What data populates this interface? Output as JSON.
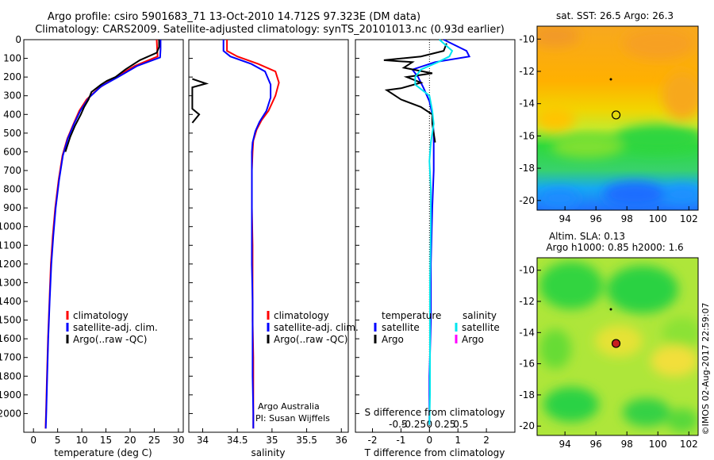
{
  "header": {
    "title_line1": "Argo profile: csiro 5901683_71 13-Oct-2010 14.712S 97.323E (DM data)",
    "title_line2": "Climatology: CARS2009. Satellite-adjusted climatology: synTS_20101013.nc (0.93d earlier)"
  },
  "footer": {
    "credit": "©IMOS 02-Aug-2017 22:59:07"
  },
  "colors": {
    "climatology": "#ff0000",
    "satellite": "#0000ff",
    "argo": "#000000",
    "sal_satellite": "#00e5ee",
    "sal_argo": "#ff00ff"
  },
  "chart_data": [
    {
      "id": "temperature",
      "type": "line",
      "xlabel": "temperature (deg C)",
      "ylabel": "",
      "xlim": [
        -2,
        31
      ],
      "ylim": [
        2100,
        0
      ],
      "xticks": [
        0,
        5,
        10,
        15,
        20,
        25,
        30
      ],
      "yticks": [
        0,
        100,
        200,
        300,
        400,
        500,
        600,
        700,
        800,
        900,
        1000,
        1100,
        1200,
        1300,
        1400,
        1500,
        1600,
        1700,
        1800,
        1900,
        2000
      ],
      "legend": [
        "climatology",
        "satellite-adj. clim.",
        "Argo(..raw -QC)"
      ],
      "series": [
        {
          "name": "climatology",
          "color": "#ff0000",
          "points": [
            [
              25.5,
              0
            ],
            [
              25.6,
              50
            ],
            [
              25.7,
              90
            ],
            [
              21,
              140
            ],
            [
              17,
              200
            ],
            [
              13.5,
              260
            ],
            [
              11,
              320
            ],
            [
              9.5,
              380
            ],
            [
              8.3,
              450
            ],
            [
              7,
              530
            ],
            [
              6,
              620
            ],
            [
              5.2,
              750
            ],
            [
              4.5,
              900
            ],
            [
              4,
              1050
            ],
            [
              3.6,
              1200
            ],
            [
              3.3,
              1400
            ],
            [
              3,
              1600
            ],
            [
              2.8,
              1800
            ],
            [
              2.6,
              2000
            ],
            [
              2.5,
              2080
            ]
          ]
        },
        {
          "name": "satellite-adj. clim.",
          "color": "#0000ff",
          "points": [
            [
              26.3,
              0
            ],
            [
              26.3,
              50
            ],
            [
              26.2,
              95
            ],
            [
              21.5,
              140
            ],
            [
              17.5,
              200
            ],
            [
              14,
              250
            ],
            [
              11.5,
              310
            ],
            [
              9.7,
              380
            ],
            [
              8.4,
              450
            ],
            [
              7.1,
              530
            ],
            [
              6.1,
              620
            ],
            [
              5.3,
              750
            ],
            [
              4.6,
              900
            ],
            [
              4.1,
              1050
            ],
            [
              3.7,
              1200
            ],
            [
              3.35,
              1400
            ],
            [
              3.05,
              1600
            ],
            [
              2.85,
              1800
            ],
            [
              2.65,
              2000
            ],
            [
              2.55,
              2080
            ]
          ]
        },
        {
          "name": "Argo(..raw -QC)",
          "color": "#000000",
          "points": [
            [
              26,
              0
            ],
            [
              26,
              40
            ],
            [
              25.5,
              70
            ],
            [
              22,
              110
            ],
            [
              19,
              160
            ],
            [
              17,
              200
            ],
            [
              15.2,
              220
            ],
            [
              14,
              240
            ],
            [
              13,
              260
            ],
            [
              12,
              280
            ],
            [
              11.4,
              320
            ],
            [
              10.5,
              360
            ],
            [
              9.8,
              400
            ],
            [
              8.6,
              460
            ],
            [
              7.6,
              520
            ],
            [
              6.6,
              600
            ]
          ]
        }
      ]
    },
    {
      "id": "salinity",
      "type": "line",
      "xlabel": "salinity",
      "ylabel": "",
      "xlim": [
        33.8,
        36.1
      ],
      "ylim": [
        2100,
        0
      ],
      "xticks": [
        34,
        34.5,
        35,
        35.5,
        36
      ],
      "legend": [
        "climatology",
        "satellite-adj. clim.",
        "Argo(..raw -QC)"
      ],
      "annotation": [
        "Argo Australia",
        "PI: Susan Wijffels"
      ],
      "series": [
        {
          "name": "climatology",
          "color": "#ff0000",
          "points": [
            [
              34.35,
              0
            ],
            [
              34.35,
              60
            ],
            [
              34.5,
              90
            ],
            [
              34.8,
              130
            ],
            [
              35.05,
              170
            ],
            [
              35.1,
              230
            ],
            [
              35.05,
              300
            ],
            [
              34.95,
              380
            ],
            [
              34.85,
              430
            ],
            [
              34.78,
              480
            ],
            [
              34.73,
              540
            ],
            [
              34.72,
              600
            ],
            [
              34.71,
              700
            ],
            [
              34.71,
              900
            ],
            [
              34.72,
              1100
            ],
            [
              34.72,
              1300
            ],
            [
              34.72,
              1500
            ],
            [
              34.73,
              1700
            ],
            [
              34.73,
              1900
            ],
            [
              34.73,
              2080
            ]
          ]
        },
        {
          "name": "satellite-adj. clim.",
          "color": "#0000ff",
          "points": [
            [
              34.3,
              0
            ],
            [
              34.3,
              60
            ],
            [
              34.4,
              90
            ],
            [
              34.7,
              130
            ],
            [
              34.9,
              170
            ],
            [
              34.98,
              240
            ],
            [
              34.98,
              310
            ],
            [
              34.92,
              380
            ],
            [
              34.82,
              440
            ],
            [
              34.76,
              490
            ],
            [
              34.72,
              550
            ],
            [
              34.71,
              600
            ],
            [
              34.71,
              800
            ],
            [
              34.71,
              1000
            ],
            [
              34.71,
              1200
            ],
            [
              34.72,
              1400
            ],
            [
              34.72,
              1600
            ],
            [
              34.72,
              1800
            ],
            [
              34.73,
              2000
            ],
            [
              34.73,
              2080
            ]
          ]
        },
        {
          "name": "Argo(..raw -QC)",
          "color": "#000000",
          "points": [
            [
              33.85,
              210
            ],
            [
              34.05,
              235
            ],
            [
              33.85,
              255
            ],
            [
              33.85,
              370
            ],
            [
              33.95,
              400
            ],
            [
              33.85,
              445
            ]
          ]
        }
      ]
    },
    {
      "id": "difference",
      "type": "line",
      "xlabel": "T difference from climatology",
      "xlabel_top": "S difference from climatology",
      "ylabel": "",
      "xlim": [
        -2.6,
        3.0
      ],
      "ylim": [
        2100,
        0
      ],
      "xticks_T": [
        -2,
        -1,
        0,
        1,
        2
      ],
      "xticks_S": [
        -0.5,
        -0.25,
        0,
        0.25,
        0.5
      ],
      "legend_temperature": {
        "title": "temperature",
        "items": [
          "satellite",
          "Argo"
        ]
      },
      "legend_salinity": {
        "title": "salinity",
        "items": [
          "satellite",
          "Argo"
        ]
      },
      "series": [
        {
          "name": "temperature satellite",
          "color": "#0000ff",
          "points": [
            [
              0.5,
              0
            ],
            [
              1.3,
              60
            ],
            [
              1.4,
              90
            ],
            [
              0.2,
              120
            ],
            [
              -0.6,
              160
            ],
            [
              -0.4,
              200
            ],
            [
              -0.2,
              260
            ],
            [
              0,
              330
            ],
            [
              0.1,
              400
            ],
            [
              0.15,
              500
            ],
            [
              0.15,
              700
            ],
            [
              0.1,
              900
            ],
            [
              0.05,
              1200
            ],
            [
              0.05,
              1500
            ],
            [
              0,
              1800
            ],
            [
              0,
              2060
            ]
          ]
        },
        {
          "name": "temperature Argo",
          "color": "#000000",
          "points": [
            [
              0.6,
              20
            ],
            [
              0.5,
              60
            ],
            [
              -0.3,
              90
            ],
            [
              -1.6,
              110
            ],
            [
              -0.6,
              120
            ],
            [
              -0.9,
              150
            ],
            [
              0.1,
              180
            ],
            [
              -0.8,
              200
            ],
            [
              -0.3,
              230
            ],
            [
              -1.0,
              260
            ],
            [
              -1.5,
              270
            ],
            [
              -1.0,
              320
            ],
            [
              -0.3,
              360
            ],
            [
              0.1,
              400
            ],
            [
              0.1,
              450
            ],
            [
              0.2,
              550
            ]
          ]
        },
        {
          "name": "salinity satellite",
          "color": "#00e5ee",
          "points": [
            [
              0.35,
              0
            ],
            [
              0.8,
              60
            ],
            [
              0.7,
              90
            ],
            [
              0.3,
              120
            ],
            [
              -0.3,
              160
            ],
            [
              -0.5,
              200
            ],
            [
              -0.5,
              240
            ],
            [
              0,
              300
            ],
            [
              0.1,
              380
            ],
            [
              0.15,
              450
            ],
            [
              0.05,
              550
            ],
            [
              0.0,
              650
            ],
            [
              0.05,
              800
            ],
            [
              0.05,
              1000
            ],
            [
              0.02,
              1300
            ],
            [
              0.02,
              1600
            ],
            [
              0.02,
              1900
            ],
            [
              0.0,
              2060
            ]
          ]
        }
      ]
    },
    {
      "id": "sst_map",
      "type": "heatmap",
      "title": "sat. SST: 26.5 Argo: 26.3",
      "xlim": [
        92.2,
        102.6
      ],
      "ylim": [
        -20.6,
        -9.2
      ],
      "xticks": [
        94,
        96,
        98,
        100,
        102
      ],
      "yticks": [
        -10,
        -12,
        -14,
        -16,
        -18,
        -20
      ],
      "argo_marker": [
        97.3,
        -14.7
      ]
    },
    {
      "id": "sla_map",
      "type": "heatmap",
      "title_line1": "Altim. SLA: 0.13",
      "title_line2": "Argo h1000: 0.85 h2000: 1.6",
      "xlim": [
        92.2,
        102.6
      ],
      "ylim": [
        -20.6,
        -9.2
      ],
      "xticks": [
        94,
        96,
        98,
        100,
        102
      ],
      "yticks": [
        -10,
        -12,
        -14,
        -16,
        -18,
        -20
      ],
      "argo_marker": [
        97.3,
        -14.7
      ]
    }
  ]
}
